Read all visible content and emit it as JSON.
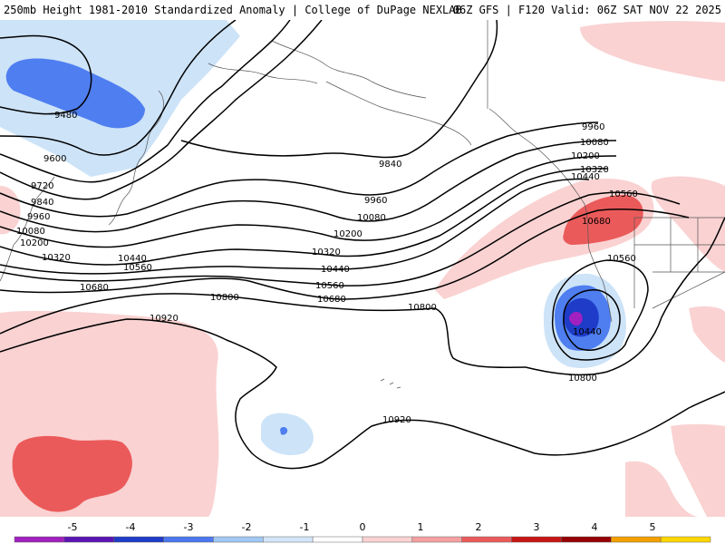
{
  "header": {
    "title_left": "250mb Height 1981-2010 Standardized Anomaly | College of DuPage NEXLAB",
    "title_right": "06Z GFS | F120 Valid: 06Z SAT NOV 22 2025"
  },
  "contours": {
    "labels": [
      "9480",
      "9600",
      "9720",
      "9840",
      "9960",
      "10080",
      "10200",
      "10320",
      "10440",
      "10560",
      "10680",
      "10800",
      "10920",
      "9840",
      "9960",
      "10080",
      "10200",
      "10320",
      "10440",
      "10560",
      "10680",
      "9960",
      "10080",
      "10200",
      "10320",
      "10440",
      "10560",
      "10680",
      "10560",
      "10440",
      "10800",
      "10800",
      "10920"
    ]
  },
  "colorbar": {
    "ticks": [
      "-5",
      "-4",
      "-3",
      "-2",
      "-1",
      "0",
      "1",
      "2",
      "3",
      "4",
      "5"
    ],
    "colors": [
      "#a020c0",
      "#5a14b4",
      "#1e3cc8",
      "#4b78f0",
      "#a0c8f5",
      "#d2e6fa",
      "#ffffff",
      "#fad2d2",
      "#f5a0a0",
      "#eb5a5a",
      "#c81414",
      "#960000",
      "#f5a000",
      "#ffd700"
    ]
  }
}
